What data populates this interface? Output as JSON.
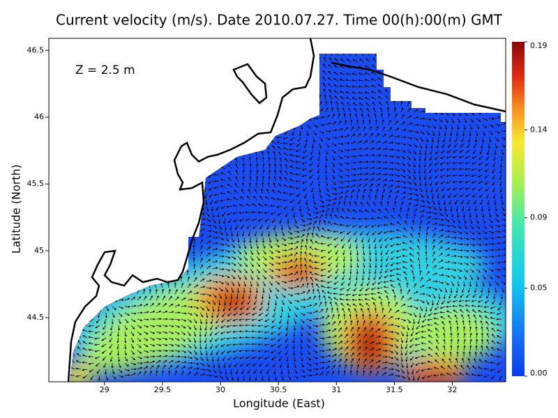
{
  "map": {
    "title": "Current velocity (m/s). Date 2010.07.27. Time 00(h):00(m) GMT",
    "annotation": "Z = 2.5 m",
    "x_label": "Longitude (East)",
    "y_label": "Latitude (North)",
    "xlim": [
      28.52,
      32.46
    ],
    "ylim": [
      44.02,
      46.59
    ],
    "xticks": [
      29,
      29.5,
      30,
      30.5,
      31,
      31.5,
      32
    ],
    "yticks": [
      44.5,
      45,
      45.5,
      46,
      46.5
    ],
    "colorbar": {
      "lim": [
        0,
        0.19
      ],
      "ticks": [
        {
          "value": 0,
          "label": "0.00"
        },
        0.05,
        0.09,
        0.14,
        0.19
      ]
    }
  }
}
